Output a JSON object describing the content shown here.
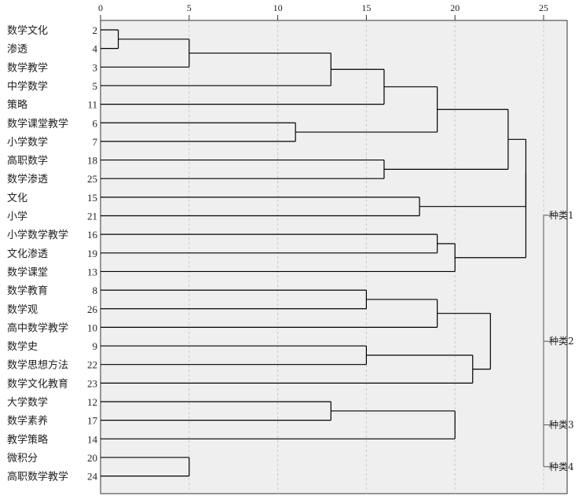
{
  "chart_data": {
    "type": "dendrogram",
    "title": "",
    "x_axis": {
      "ticks": [
        0,
        5,
        10,
        15,
        20,
        25
      ],
      "range": [
        0,
        26
      ],
      "grid": "dashed vertical"
    },
    "leaves": [
      {
        "label": "数学文化",
        "id": "2"
      },
      {
        "label": "渗透",
        "id": "4"
      },
      {
        "label": "数学教学",
        "id": "3"
      },
      {
        "label": "中学数学",
        "id": "5"
      },
      {
        "label": "策略",
        "id": "11"
      },
      {
        "label": "数学课堂教学",
        "id": "6"
      },
      {
        "label": "小学数学",
        "id": "7"
      },
      {
        "label": "高职数学",
        "id": "18"
      },
      {
        "label": "数学渗透",
        "id": "25"
      },
      {
        "label": "文化",
        "id": "15"
      },
      {
        "label": "小学",
        "id": "21"
      },
      {
        "label": "小学数学教学",
        "id": "16"
      },
      {
        "label": "文化渗透",
        "id": "19"
      },
      {
        "label": "数学课堂",
        "id": "13"
      },
      {
        "label": "数学教育",
        "id": "8"
      },
      {
        "label": "数学观",
        "id": "26"
      },
      {
        "label": "高中数学教学",
        "id": "10"
      },
      {
        "label": "数学史",
        "id": "9"
      },
      {
        "label": "数学思想方法",
        "id": "22"
      },
      {
        "label": "数学文化教育",
        "id": "23"
      },
      {
        "label": "大学数学",
        "id": "12"
      },
      {
        "label": "数学素养",
        "id": "17"
      },
      {
        "label": "教学策略",
        "id": "14"
      },
      {
        "label": "微积分",
        "id": "20"
      },
      {
        "label": "高职数学教学",
        "id": "24"
      }
    ],
    "merges": [
      {
        "children": [
          "2",
          "4"
        ],
        "height": 1
      },
      {
        "children": [
          "m0",
          "3"
        ],
        "height": 5
      },
      {
        "children": [
          "m1",
          "5"
        ],
        "height": 13
      },
      {
        "children": [
          "m2",
          "11"
        ],
        "height": 16
      },
      {
        "children": [
          "6",
          "7"
        ],
        "height": 11
      },
      {
        "children": [
          "m3",
          "m4"
        ],
        "height": 19
      },
      {
        "children": [
          "18",
          "25"
        ],
        "height": 16
      },
      {
        "children": [
          "m5",
          "m6"
        ],
        "height": 23
      },
      {
        "children": [
          "15",
          "21"
        ],
        "height": 18
      },
      {
        "children": [
          "16",
          "19"
        ],
        "height": 19
      },
      {
        "children": [
          "m9",
          "13"
        ],
        "height": 20
      },
      {
        "children": [
          "m7",
          "m8"
        ],
        "height": 24
      },
      {
        "children": [
          "m11",
          "m10"
        ],
        "height": 24
      },
      {
        "children": [
          "8",
          "26"
        ],
        "height": 15
      },
      {
        "children": [
          "m13",
          "10"
        ],
        "height": 19
      },
      {
        "children": [
          "9",
          "22"
        ],
        "height": 15
      },
      {
        "children": [
          "m15",
          "23"
        ],
        "height": 21
      },
      {
        "children": [
          "m14",
          "m16"
        ],
        "height": 22
      },
      {
        "children": [
          "12",
          "17"
        ],
        "height": 13
      },
      {
        "children": [
          "m18",
          "14"
        ],
        "height": 20
      },
      {
        "children": [
          "20",
          "24"
        ],
        "height": 5
      }
    ],
    "clusters": [
      {
        "label": "种类1",
        "root": "m12"
      },
      {
        "label": "种类2",
        "root": "m17"
      },
      {
        "label": "种类3",
        "root": "m19"
      },
      {
        "label": "种类4",
        "root": "m20"
      }
    ]
  },
  "colors": {
    "plot_bg": "#efefef",
    "line": "#000000",
    "grid": "#c8c8c8",
    "class_line": "#555555"
  }
}
